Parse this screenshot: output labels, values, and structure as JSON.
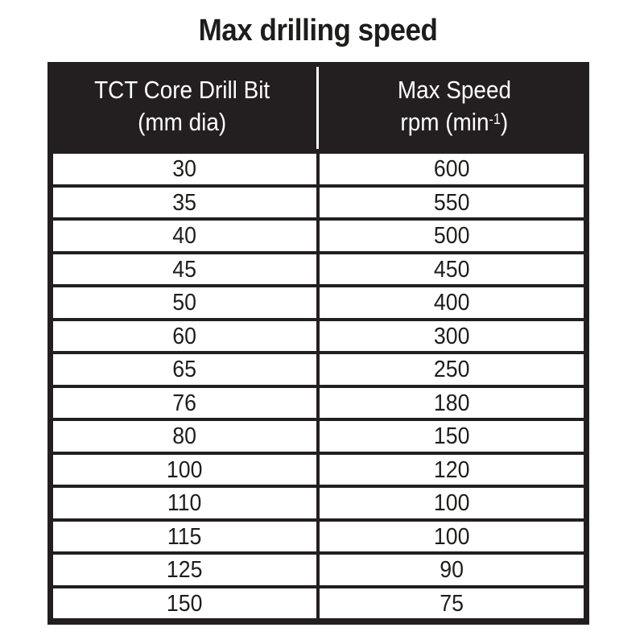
{
  "title": "Max drilling speed",
  "table": {
    "columns": [
      {
        "lines": [
          "TCT Core Drill Bit",
          "(mm dia)"
        ]
      },
      {
        "lines": [
          "Max Speed",
          "rpm (min"
        ],
        "superscript": "-1",
        "suffix": ")"
      }
    ],
    "rows": [
      [
        "30",
        "600"
      ],
      [
        "35",
        "550"
      ],
      [
        "40",
        "500"
      ],
      [
        "45",
        "450"
      ],
      [
        "50",
        "400"
      ],
      [
        "60",
        "300"
      ],
      [
        "65",
        "250"
      ],
      [
        "76",
        "180"
      ],
      [
        "80",
        "150"
      ],
      [
        "100",
        "120"
      ],
      [
        "110",
        "100"
      ],
      [
        "115",
        "100"
      ],
      [
        "125",
        "90"
      ],
      [
        "150",
        "75"
      ]
    ]
  },
  "colors": {
    "header_background": "#231f20",
    "header_text": "#ffffff",
    "cell_background": "#ffffff",
    "text": "#1d1d1b"
  }
}
